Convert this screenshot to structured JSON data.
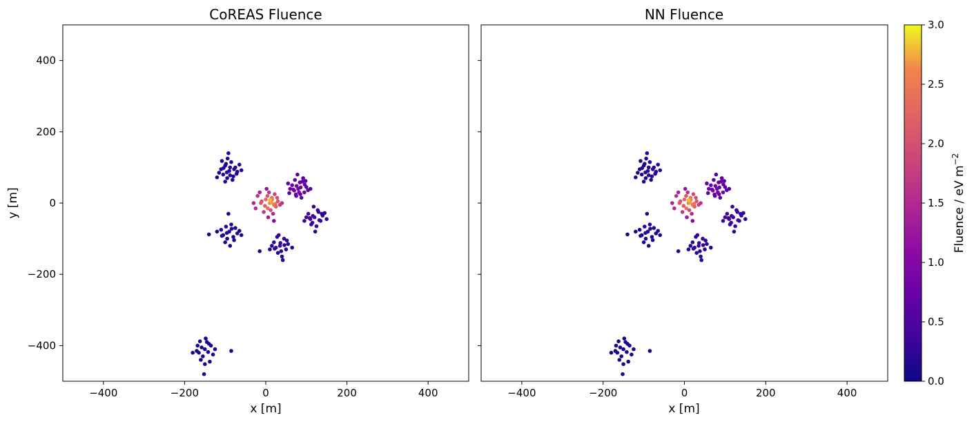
{
  "chart_data": [
    {
      "type": "scatter",
      "title": "CoREAS Fluence",
      "xlabel": "x [m]",
      "ylabel": "y [m]",
      "xlim": [
        -500,
        500
      ],
      "ylim": [
        -500,
        500
      ],
      "xticks": [
        -400,
        -200,
        0,
        200,
        400
      ],
      "yticks": [
        -400,
        -200,
        0,
        200,
        400
      ],
      "xtick_labels": [
        "−400",
        "−200",
        "0",
        "200",
        "400"
      ],
      "ytick_labels": [
        "−400",
        "−200",
        "0",
        "200",
        "400"
      ],
      "grid": false,
      "series": [
        {
          "x": [
            -90,
            -105,
            -75,
            -95,
            -100,
            -80,
            -110,
            -70,
            -85,
            -100,
            -92,
            -78,
            -88,
            -115,
            -65,
            -94,
            -82,
            -104,
            -72,
            -98,
            -60,
            -120,
            -88,
            -96,
            -108
          ],
          "y": [
            90,
            80,
            100,
            70,
            105,
            75,
            95,
            88,
            115,
            60,
            140,
            95,
            78,
            85,
            108,
            125,
            65,
            98,
            82,
            110,
            92,
            72,
            100,
            86,
            118
          ],
          "fluence": [
            0.2,
            0.15,
            0.2,
            0.15,
            0.15,
            0.2,
            0.1,
            0.2,
            0.15,
            0.1,
            0.1,
            0.2,
            0.2,
            0.1,
            0.2,
            0.15,
            0.15,
            0.2,
            0.2,
            0.15,
            0.15,
            0.1,
            0.2,
            0.2,
            0.15
          ]
        },
        {
          "x": [
            80,
            65,
            95,
            75,
            90,
            70,
            100,
            60,
            85,
            78,
            110,
            55,
            88,
            72,
            96,
            82,
            68,
            92,
            76,
            84,
            58,
            104,
            86,
            74,
            98
          ],
          "y": [
            40,
            50,
            30,
            20,
            60,
            35,
            45,
            40,
            25,
            80,
            40,
            55,
            15,
            65,
            52,
            30,
            38,
            70,
            48,
            58,
            28,
            36,
            44,
            24,
            62
          ],
          "fluence": [
            0.9,
            0.8,
            0.8,
            0.7,
            0.7,
            0.9,
            0.6,
            0.8,
            0.7,
            0.5,
            0.5,
            0.7,
            0.6,
            0.6,
            0.7,
            0.85,
            0.8,
            0.6,
            0.8,
            0.7,
            0.6,
            0.6,
            0.85,
            0.7,
            0.6
          ]
        },
        {
          "x": [
            120,
            105,
            135,
            115,
            130,
            110,
            140,
            100,
            125,
            118,
            150,
            95,
            128,
            112,
            138,
            122,
            108,
            132,
            116,
            145
          ],
          "y": [
            -40,
            -30,
            -50,
            -55,
            -25,
            -45,
            -35,
            -40,
            -65,
            -10,
            -45,
            -50,
            -20,
            -60,
            -30,
            -80,
            -42,
            -48,
            -36,
            -28
          ],
          "fluence": [
            0.4,
            0.35,
            0.3,
            0.35,
            0.3,
            0.4,
            0.25,
            0.35,
            0.3,
            0.25,
            0.2,
            0.3,
            0.3,
            0.3,
            0.25,
            0.2,
            0.4,
            0.3,
            0.35,
            0.25
          ]
        },
        {
          "x": [
            -90,
            -105,
            -75,
            -95,
            -85,
            -110,
            -70,
            -100,
            -80,
            -120,
            -65,
            -92,
            -88,
            -140,
            -98,
            -78,
            -108,
            -84,
            -60,
            -96
          ],
          "y": [
            -80,
            -90,
            -70,
            -100,
            -60,
            -75,
            -85,
            -110,
            -95,
            -80,
            -78,
            -30,
            -120,
            -88,
            -66,
            -104,
            -92,
            -72,
            -90,
            -84
          ],
          "fluence": [
            0.2,
            0.15,
            0.2,
            0.15,
            0.2,
            0.1,
            0.2,
            0.1,
            0.15,
            0.1,
            0.15,
            0.1,
            0.1,
            0.1,
            0.2,
            0.15,
            0.15,
            0.2,
            0.1,
            0.2
          ]
        },
        {
          "x": [
            35,
            20,
            50,
            30,
            45,
            25,
            55,
            15,
            40,
            32,
            65,
            10,
            42,
            28,
            52,
            38,
            -15,
            46,
            22,
            36
          ],
          "y": [
            -120,
            -110,
            -130,
            -140,
            -100,
            -125,
            -115,
            -120,
            -150,
            -90,
            -125,
            -130,
            -160,
            -95,
            -105,
            -135,
            -135,
            -118,
            -128,
            -112
          ],
          "fluence": [
            0.3,
            0.25,
            0.2,
            0.2,
            0.3,
            0.25,
            0.2,
            0.2,
            0.2,
            0.3,
            0.15,
            0.2,
            0.15,
            0.25,
            0.25,
            0.25,
            0.1,
            0.25,
            0.25,
            0.3
          ]
        },
        {
          "x": [
            -150,
            -165,
            -135,
            -155,
            -145,
            -170,
            -130,
            -160,
            -140,
            -180,
            -125,
            -152,
            -148,
            -85,
            -158,
            -138,
            -168,
            -142,
            -150,
            -162
          ],
          "y": [
            -410,
            -420,
            -400,
            -430,
            -390,
            -415,
            -425,
            -440,
            -395,
            -420,
            -410,
            -480,
            -380,
            -415,
            -405,
            -445,
            -400,
            -418,
            -452,
            -388
          ],
          "fluence": [
            0.1,
            0.1,
            0.1,
            0.1,
            0.1,
            0.05,
            0.1,
            0.05,
            0.1,
            0.05,
            0.1,
            0.05,
            0.05,
            0.05,
            0.1,
            0.05,
            0.1,
            0.1,
            0.05,
            0.1
          ]
        },
        {
          "x": [
            10,
            0,
            20,
            -10,
            15,
            5,
            25,
            -20,
            30,
            12,
            -5,
            22,
            8,
            -30,
            35,
            18,
            -15,
            2,
            28,
            6,
            16,
            -25,
            20,
            14,
            40,
            -12,
            10,
            -2,
            24,
            4
          ],
          "y": [
            0,
            10,
            -5,
            5,
            15,
            -15,
            -10,
            20,
            5,
            -20,
            -25,
            25,
            30,
            0,
            -5,
            -30,
            30,
            40,
            15,
            -40,
            10,
            -15,
            -50,
            2,
            0,
            0,
            8,
            -8,
            -2,
            20
          ],
          "fluence": [
            2.6,
            2.3,
            2.5,
            2.0,
            2.4,
            2.4,
            2.2,
            1.6,
            2.1,
            2.0,
            1.7,
            1.9,
            1.6,
            1.4,
            1.8,
            1.5,
            1.4,
            1.2,
            2.0,
            1.3,
            2.6,
            1.5,
            1.0,
            2.7,
            1.6,
            2.1,
            2.8,
            2.2,
            2.4,
            2.1
          ]
        }
      ]
    },
    {
      "type": "scatter",
      "title": "NN Fluence",
      "xlabel": "x [m]",
      "ylabel": "",
      "xlim": [
        -500,
        500
      ],
      "ylim": [
        -500,
        500
      ],
      "xticks": [
        -400,
        -200,
        0,
        200,
        400
      ],
      "yticks": [
        -400,
        -200,
        0,
        200,
        400
      ],
      "xtick_labels": [
        "−400",
        "−200",
        "0",
        "200",
        "400"
      ],
      "grid": false,
      "series": [
        {
          "x": [
            -90,
            -105,
            -75,
            -95,
            -100,
            -80,
            -110,
            -70,
            -85,
            -100,
            -92,
            -78,
            -88,
            -115,
            -65,
            -94,
            -82,
            -104,
            -72,
            -98,
            -60,
            -120,
            -88,
            -96,
            -108
          ],
          "y": [
            90,
            80,
            100,
            70,
            105,
            75,
            95,
            88,
            115,
            60,
            140,
            95,
            78,
            85,
            108,
            125,
            65,
            98,
            82,
            110,
            92,
            72,
            100,
            86,
            118
          ],
          "fluence": [
            0.2,
            0.15,
            0.2,
            0.15,
            0.15,
            0.2,
            0.1,
            0.2,
            0.15,
            0.1,
            0.1,
            0.2,
            0.2,
            0.1,
            0.2,
            0.15,
            0.15,
            0.2,
            0.2,
            0.15,
            0.15,
            0.1,
            0.2,
            0.2,
            0.15
          ]
        },
        {
          "x": [
            80,
            65,
            95,
            75,
            90,
            70,
            100,
            60,
            85,
            78,
            110,
            55,
            88,
            72,
            96,
            82,
            68,
            92,
            76,
            84,
            58,
            104,
            86,
            74,
            98
          ],
          "y": [
            40,
            50,
            30,
            20,
            60,
            35,
            45,
            40,
            25,
            80,
            40,
            55,
            15,
            65,
            52,
            30,
            38,
            70,
            48,
            58,
            28,
            36,
            44,
            24,
            62
          ],
          "fluence": [
            0.9,
            0.8,
            0.8,
            0.7,
            0.7,
            0.9,
            0.6,
            0.8,
            0.7,
            0.5,
            0.5,
            0.7,
            0.6,
            0.6,
            0.7,
            0.85,
            0.8,
            0.6,
            0.8,
            0.7,
            0.6,
            0.6,
            0.85,
            0.7,
            0.6
          ]
        },
        {
          "x": [
            120,
            105,
            135,
            115,
            130,
            110,
            140,
            100,
            125,
            118,
            150,
            95,
            128,
            112,
            138,
            122,
            108,
            132,
            116,
            145
          ],
          "y": [
            -40,
            -30,
            -50,
            -55,
            -25,
            -45,
            -35,
            -40,
            -65,
            -10,
            -45,
            -50,
            -20,
            -60,
            -30,
            -80,
            -42,
            -48,
            -36,
            -28
          ],
          "fluence": [
            0.4,
            0.35,
            0.3,
            0.35,
            0.3,
            0.4,
            0.25,
            0.35,
            0.3,
            0.25,
            0.2,
            0.3,
            0.3,
            0.3,
            0.25,
            0.2,
            0.4,
            0.3,
            0.35,
            0.25
          ]
        },
        {
          "x": [
            -90,
            -105,
            -75,
            -95,
            -85,
            -110,
            -70,
            -100,
            -80,
            -120,
            -65,
            -92,
            -88,
            -140,
            -98,
            -78,
            -108,
            -84,
            -60,
            -96
          ],
          "y": [
            -80,
            -90,
            -70,
            -100,
            -60,
            -75,
            -85,
            -110,
            -95,
            -80,
            -78,
            -30,
            -120,
            -88,
            -66,
            -104,
            -92,
            -72,
            -90,
            -84
          ],
          "fluence": [
            0.2,
            0.15,
            0.2,
            0.15,
            0.2,
            0.1,
            0.2,
            0.1,
            0.15,
            0.1,
            0.15,
            0.1,
            0.1,
            0.1,
            0.2,
            0.15,
            0.15,
            0.2,
            0.1,
            0.2
          ]
        },
        {
          "x": [
            35,
            20,
            50,
            30,
            45,
            25,
            55,
            15,
            40,
            32,
            65,
            10,
            42,
            28,
            52,
            38,
            -15,
            46,
            22,
            36
          ],
          "y": [
            -120,
            -110,
            -130,
            -140,
            -100,
            -125,
            -115,
            -120,
            -150,
            -90,
            -125,
            -130,
            -160,
            -95,
            -105,
            -135,
            -135,
            -118,
            -128,
            -112
          ],
          "fluence": [
            0.3,
            0.25,
            0.2,
            0.2,
            0.3,
            0.25,
            0.2,
            0.2,
            0.2,
            0.3,
            0.15,
            0.2,
            0.15,
            0.25,
            0.25,
            0.25,
            0.1,
            0.25,
            0.25,
            0.3
          ]
        },
        {
          "x": [
            -150,
            -165,
            -135,
            -155,
            -145,
            -170,
            -130,
            -160,
            -140,
            -180,
            -125,
            -152,
            -148,
            -85,
            -158,
            -138,
            -168,
            -142,
            -150,
            -162
          ],
          "y": [
            -410,
            -420,
            -400,
            -430,
            -390,
            -415,
            -425,
            -440,
            -395,
            -420,
            -410,
            -480,
            -380,
            -415,
            -405,
            -445,
            -400,
            -418,
            -452,
            -388
          ],
          "fluence": [
            0.1,
            0.1,
            0.1,
            0.1,
            0.1,
            0.05,
            0.1,
            0.05,
            0.1,
            0.05,
            0.1,
            0.05,
            0.05,
            0.05,
            0.1,
            0.05,
            0.1,
            0.1,
            0.05,
            0.1
          ]
        },
        {
          "x": [
            10,
            0,
            20,
            -10,
            15,
            5,
            25,
            -20,
            30,
            12,
            -5,
            22,
            8,
            -30,
            35,
            18,
            -15,
            2,
            28,
            6,
            16,
            -25,
            20,
            14,
            40,
            -12,
            10,
            -2,
            24,
            4
          ],
          "y": [
            0,
            10,
            -5,
            5,
            15,
            -15,
            -10,
            20,
            5,
            -20,
            -25,
            25,
            30,
            0,
            -5,
            -30,
            30,
            40,
            15,
            -40,
            10,
            -15,
            -50,
            2,
            0,
            0,
            8,
            -8,
            -2,
            20
          ],
          "fluence": [
            2.6,
            2.3,
            2.5,
            2.0,
            2.4,
            2.4,
            2.2,
            1.6,
            2.1,
            2.0,
            1.7,
            1.9,
            1.6,
            1.4,
            1.8,
            1.5,
            1.4,
            1.2,
            2.0,
            1.3,
            2.6,
            1.5,
            1.0,
            2.7,
            1.6,
            2.1,
            2.8,
            2.2,
            2.4,
            2.1
          ]
        }
      ]
    }
  ],
  "colorbar": {
    "label_main": "Fluence / eV m",
    "label_exp": "−2",
    "colormap": "plasma",
    "range": [
      0.0,
      3.0
    ],
    "ticks": [
      0.0,
      0.5,
      1.0,
      1.5,
      2.0,
      2.5,
      3.0
    ],
    "tick_labels": [
      "0.0",
      "0.5",
      "1.0",
      "1.5",
      "2.0",
      "2.5",
      "3.0"
    ]
  }
}
